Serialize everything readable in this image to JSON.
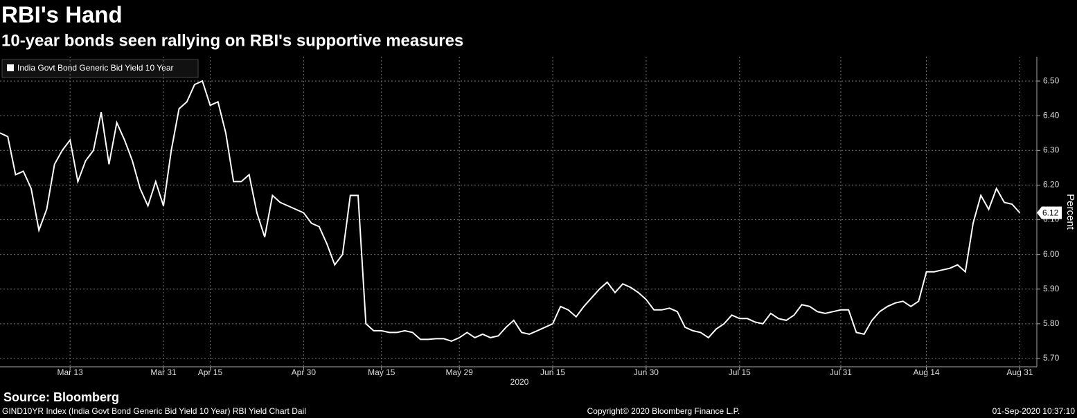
{
  "chart_data": {
    "type": "line",
    "title": "RBI's Hand",
    "subtitle": "10-year bonds seen rallying on RBI's supportive measures",
    "x_label": "2020",
    "y_label": "Percent",
    "source": "Source: Bloomberg",
    "footer_left": "GIND10YR Index (India Govt Bond Generic Bid Yield 10 Year) RBI Yield Chart  Dail",
    "footer_center": "Copyright© 2020 Bloomberg Finance L.P.",
    "footer_right": "01-Sep-2020 10:37:10",
    "legend": "top-left",
    "grid": true,
    "categories": [
      null,
      null,
      null,
      null,
      null,
      null,
      null,
      null,
      null,
      "Mar 13",
      null,
      null,
      null,
      null,
      null,
      null,
      null,
      null,
      null,
      null,
      null,
      "Mar 31",
      null,
      null,
      null,
      null,
      null,
      "Apr 15",
      null,
      null,
      null,
      null,
      null,
      null,
      null,
      null,
      null,
      null,
      null,
      "Apr 30",
      null,
      null,
      null,
      null,
      null,
      null,
      null,
      null,
      null,
      "May 15",
      null,
      null,
      null,
      null,
      null,
      null,
      null,
      null,
      null,
      "May 29",
      null,
      null,
      null,
      null,
      null,
      null,
      null,
      null,
      null,
      null,
      null,
      "Jun 15",
      null,
      null,
      null,
      null,
      null,
      null,
      null,
      null,
      null,
      null,
      null,
      "Jun 30",
      null,
      null,
      null,
      null,
      null,
      null,
      null,
      null,
      null,
      null,
      null,
      "Jul 15",
      null,
      null,
      null,
      null,
      null,
      null,
      null,
      null,
      null,
      null,
      null,
      null,
      "Jul 31",
      null,
      null,
      null,
      null,
      null,
      null,
      null,
      null,
      null,
      null,
      "Aug 14",
      null,
      null,
      null,
      null,
      null,
      null,
      null,
      null,
      null,
      null,
      null,
      "Aug 31"
    ],
    "series": [
      {
        "name": "India Govt Bond Generic Bid Yield 10 Year",
        "color": "#ffffff",
        "values": [
          6.35,
          6.34,
          6.23,
          6.24,
          6.19,
          6.07,
          6.13,
          6.26,
          6.3,
          6.33,
          6.21,
          6.27,
          6.3,
          6.41,
          6.26,
          6.38,
          6.33,
          6.27,
          6.19,
          6.14,
          6.21,
          6.14,
          6.3,
          6.42,
          6.44,
          6.49,
          6.5,
          6.43,
          6.44,
          6.35,
          6.21,
          6.21,
          6.23,
          6.12,
          6.05,
          6.17,
          6.15,
          6.14,
          6.13,
          6.12,
          6.09,
          6.08,
          6.03,
          5.97,
          6.0,
          6.17,
          6.17,
          5.8,
          5.78,
          5.78,
          5.775,
          5.775,
          5.78,
          5.775,
          5.755,
          5.755,
          5.757,
          5.757,
          5.75,
          5.76,
          5.775,
          5.76,
          5.77,
          5.76,
          5.765,
          5.79,
          5.81,
          5.775,
          5.77,
          5.78,
          5.79,
          5.8,
          5.85,
          5.84,
          5.82,
          5.85,
          5.875,
          5.9,
          5.92,
          5.89,
          5.915,
          5.905,
          5.89,
          5.87,
          5.84,
          5.84,
          5.845,
          5.835,
          5.79,
          5.78,
          5.775,
          5.76,
          5.785,
          5.8,
          5.825,
          5.815,
          5.815,
          5.805,
          5.8,
          5.83,
          5.815,
          5.81,
          5.825,
          5.855,
          5.85,
          5.835,
          5.83,
          5.835,
          5.84,
          5.84,
          5.775,
          5.77,
          5.81,
          5.835,
          5.85,
          5.86,
          5.865,
          5.85,
          5.865,
          5.95,
          5.95,
          5.955,
          5.96,
          5.97,
          5.95,
          6.09,
          6.17,
          6.13,
          6.19,
          6.15,
          6.145,
          6.12
        ]
      }
    ],
    "ylim": [
      5.676,
      6.57
    ],
    "yticks": [
      {
        "value": 5.7,
        "label": "5.70"
      },
      {
        "value": 5.8,
        "label": "5.80"
      },
      {
        "value": 5.9,
        "label": "5.90"
      },
      {
        "value": 6.0,
        "label": "6.00"
      },
      {
        "value": 6.1,
        "label": "6.10"
      },
      {
        "value": 6.2,
        "label": "6.20"
      },
      {
        "value": 6.3,
        "label": "6.30"
      },
      {
        "value": 6.4,
        "label": "6.40"
      },
      {
        "value": 6.5,
        "label": "6.50"
      }
    ]
  }
}
